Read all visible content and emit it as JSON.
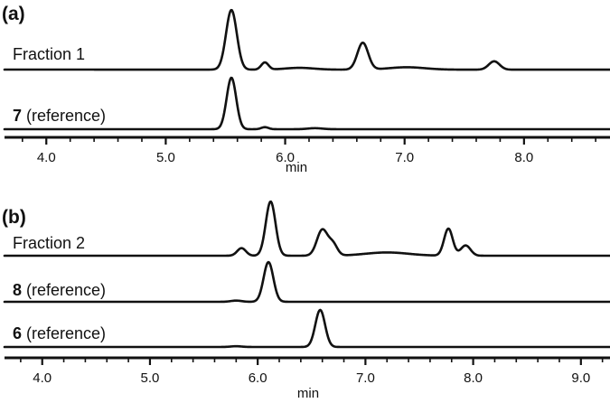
{
  "chart_data": [
    {
      "type": "line",
      "panel_label": "(a)",
      "xlabel": "min",
      "xlim": [
        3.65,
        8.72
      ],
      "xticks": [
        4.0,
        5.0,
        6.0,
        7.0,
        8.0
      ],
      "xtick_labels": [
        "4.0",
        "5.0",
        "6.0",
        "7.0",
        "8.0"
      ],
      "series": [
        {
          "name": "Fraction 1",
          "label_parts": {
            "bold": "",
            "text": "Fraction 1"
          },
          "baseline_slope": -0.001,
          "peaks": [
            {
              "x": 5.55,
              "height": 1.0,
              "width": 0.045
            },
            {
              "x": 5.83,
              "height": 0.12,
              "width": 0.03
            },
            {
              "x": 6.12,
              "height": 0.03,
              "width": 0.12
            },
            {
              "x": 6.65,
              "height": 0.45,
              "width": 0.045
            },
            {
              "x": 7.02,
              "height": 0.04,
              "width": 0.15
            },
            {
              "x": 7.75,
              "height": 0.14,
              "width": 0.045
            }
          ]
        },
        {
          "name": "7 (reference)",
          "label_parts": {
            "bold": "7",
            "text": " (reference)"
          },
          "baseline_slope": 0,
          "peaks": [
            {
              "x": 5.55,
              "height": 1.0,
              "width": 0.04
            },
            {
              "x": 5.83,
              "height": 0.04,
              "width": 0.03
            },
            {
              "x": 6.25,
              "height": 0.02,
              "width": 0.06
            }
          ]
        }
      ]
    },
    {
      "type": "line",
      "panel_label": "(b)",
      "xlabel": "min",
      "xlim": [
        3.65,
        9.27
      ],
      "xticks": [
        4.0,
        5.0,
        6.0,
        7.0,
        8.0,
        9.0
      ],
      "xtick_labels": [
        "4.0",
        "5.0",
        "6.0",
        "7.0",
        "8.0",
        "9.0"
      ],
      "series": [
        {
          "name": "Fraction 2",
          "label_parts": {
            "bold": "",
            "text": "Fraction 2"
          },
          "baseline_slope": 0,
          "peaks": [
            {
              "x": 5.85,
              "height": 0.14,
              "width": 0.04
            },
            {
              "x": 6.12,
              "height": 1.0,
              "width": 0.045
            },
            {
              "x": 6.6,
              "height": 0.48,
              "width": 0.05
            },
            {
              "x": 6.7,
              "height": 0.2,
              "width": 0.04
            },
            {
              "x": 7.2,
              "height": 0.06,
              "width": 0.2
            },
            {
              "x": 7.77,
              "height": 0.5,
              "width": 0.04
            },
            {
              "x": 7.93,
              "height": 0.19,
              "width": 0.045
            }
          ]
        },
        {
          "name": "8 (reference)",
          "label_parts": {
            "bold": "8",
            "text": " (reference)"
          },
          "baseline_slope": 0,
          "peaks": [
            {
              "x": 5.8,
              "height": 0.03,
              "width": 0.05
            },
            {
              "x": 6.1,
              "height": 1.0,
              "width": 0.045
            }
          ]
        },
        {
          "name": "6 (reference)",
          "label_parts": {
            "bold": "6",
            "text": " (reference)"
          },
          "baseline_slope": 0,
          "peaks": [
            {
              "x": 5.8,
              "height": 0.02,
              "width": 0.05
            },
            {
              "x": 6.58,
              "height": 1.0,
              "width": 0.045
            }
          ]
        }
      ]
    }
  ]
}
